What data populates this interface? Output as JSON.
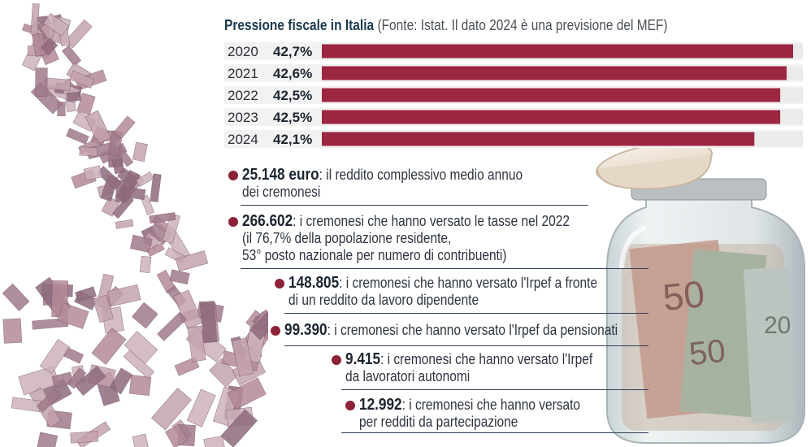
{
  "chart_data": {
    "type": "bar",
    "orientation": "horizontal",
    "title": "Pressione fiscale in Italia",
    "subtitle": "(Fonte: Istat. Il dato 2024 è una previsione del MEF)",
    "categories": [
      "2020",
      "2021",
      "2022",
      "2023",
      "2024"
    ],
    "values": [
      42.7,
      42.6,
      42.5,
      42.5,
      42.1
    ],
    "value_labels": [
      "42,7%",
      "42,6%",
      "42,5%",
      "42,5%",
      "42,1%"
    ],
    "unit": "%",
    "bar_color": "#9b2740",
    "track_color": "#ebebeb",
    "grid": false,
    "legend": "none"
  },
  "facts": [
    {
      "number": "25.148 euro",
      "lines": [
        ": il reddito complessivo medio annuo",
        "dei cremonesi"
      ]
    },
    {
      "number": "266.602",
      "lines": [
        ": i cremonesi che hanno versato le tasse nel 2022",
        "(il 76,7% della popolazione residente,",
        "53° posto nazionale per numero di contribuenti)"
      ]
    },
    {
      "number": "148.805",
      "lines": [
        ": i cremonesi che hanno versato l'Irpef a fronte",
        "di un reddito da lavoro dipendente"
      ]
    },
    {
      "number": "99.390",
      "lines": [
        ": i cremonesi che hanno versato l'Irpef da pensionati"
      ]
    },
    {
      "number": "9.415",
      "lines": [
        ": i cremonesi che hanno versato l'Irpef",
        "da lavoratori autonomi"
      ]
    },
    {
      "number": "12.992",
      "lines": [
        ": i cremonesi che hanno versato",
        "per redditi da partecipazione"
      ]
    }
  ],
  "colors": {
    "accent": "#9b2740",
    "bullet": "#8c2138",
    "rule": "#2f3f55",
    "title": "#1b3a4f"
  },
  "illustrations": [
    "falling-banknotes-image",
    "money-jar-image"
  ]
}
